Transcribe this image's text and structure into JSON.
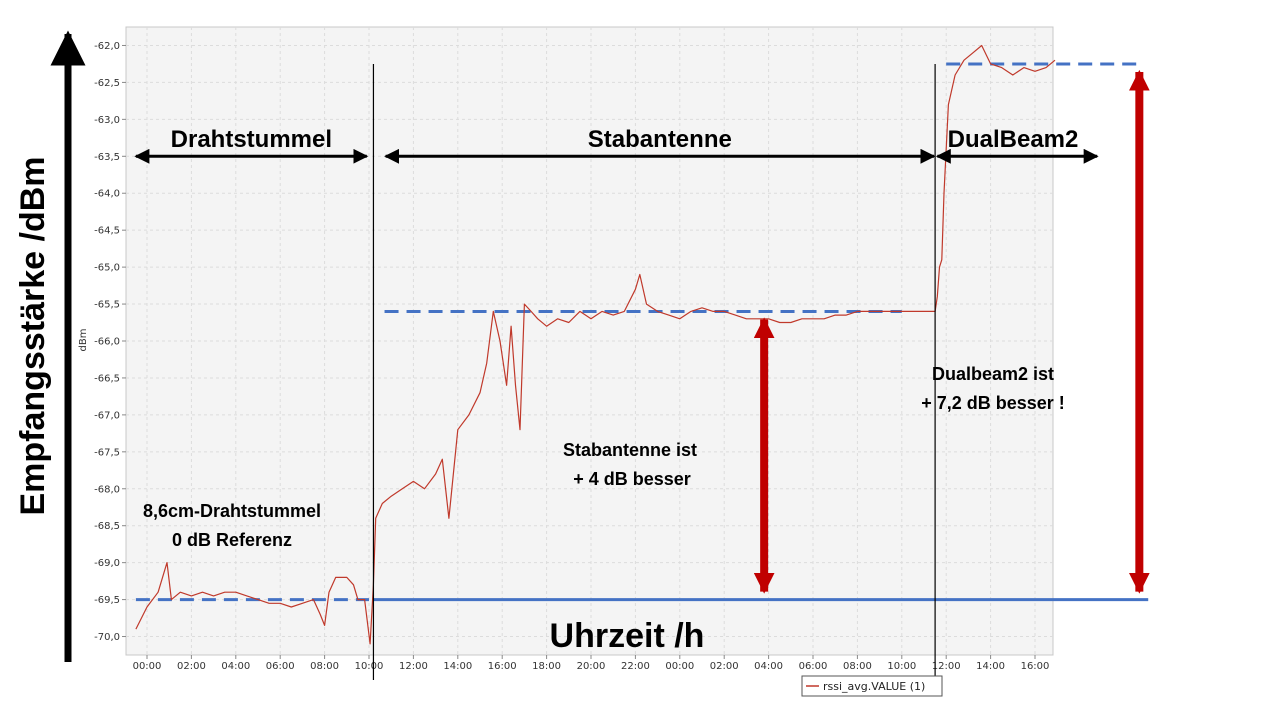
{
  "chart_data": {
    "type": "line",
    "ylabel": "Empfangsstärke /dBm",
    "xlabel": "Uhrzeit /h",
    "unit_label": "dBm",
    "ylim": [
      -70.25,
      -61.75
    ],
    "y_ticks": [
      "-62,0",
      "-62,5",
      "-63,0",
      "-63,5",
      "-64,0",
      "-64,5",
      "-65,0",
      "-65,5",
      "-66,0",
      "-66,5",
      "-67,0",
      "-67,5",
      "-68,0",
      "-68,5",
      "-69,0",
      "-69,5",
      "-70,0"
    ],
    "y_tick_values": [
      -62.0,
      -62.5,
      -63.0,
      -63.5,
      -64.0,
      -64.5,
      -65.0,
      -65.5,
      -66.0,
      -66.5,
      -67.0,
      -67.5,
      -68.0,
      -68.5,
      -69.0,
      -69.5,
      -70.0
    ],
    "x_range_hours": [
      -0.5,
      41.8
    ],
    "x_ticks": [
      "00:00",
      "02:00",
      "04:00",
      "06:00",
      "08:00",
      "10:00",
      "12:00",
      "14:00",
      "16:00",
      "18:00",
      "20:00",
      "22:00",
      "00:00",
      "02:00",
      "04:00",
      "06:00",
      "08:00",
      "10:00",
      "12:00",
      "14:00",
      "16:00"
    ],
    "x_tick_hours": [
      0,
      2,
      4,
      6,
      8,
      10,
      12,
      14,
      16,
      18,
      20,
      22,
      24,
      26,
      28,
      30,
      32,
      34,
      36,
      38,
      40
    ],
    "grid": true,
    "legend": "bottom-right",
    "series": [
      {
        "name": "rssi_avg.VALUE (1)",
        "color": "#c0392b",
        "points": [
          [
            -0.5,
            -69.9
          ],
          [
            0,
            -69.6
          ],
          [
            0.5,
            -69.4
          ],
          [
            0.9,
            -69.0
          ],
          [
            1.1,
            -69.5
          ],
          [
            1.5,
            -69.4
          ],
          [
            2,
            -69.45
          ],
          [
            2.5,
            -69.4
          ],
          [
            3,
            -69.45
          ],
          [
            3.5,
            -69.4
          ],
          [
            4,
            -69.4
          ],
          [
            4.5,
            -69.45
          ],
          [
            5,
            -69.5
          ],
          [
            5.5,
            -69.55
          ],
          [
            6,
            -69.55
          ],
          [
            6.5,
            -69.6
          ],
          [
            7,
            -69.55
          ],
          [
            7.5,
            -69.5
          ],
          [
            7.8,
            -69.7
          ],
          [
            8,
            -69.85
          ],
          [
            8.2,
            -69.4
          ],
          [
            8.5,
            -69.2
          ],
          [
            9,
            -69.2
          ],
          [
            9.3,
            -69.3
          ],
          [
            9.5,
            -69.5
          ],
          [
            9.8,
            -69.5
          ],
          [
            10.05,
            -70.1
          ],
          [
            10.2,
            -69.3
          ],
          [
            10.3,
            -68.4
          ],
          [
            10.6,
            -68.2
          ],
          [
            11,
            -68.1
          ],
          [
            11.5,
            -68.0
          ],
          [
            12,
            -67.9
          ],
          [
            12.5,
            -68.0
          ],
          [
            13,
            -67.8
          ],
          [
            13.3,
            -67.6
          ],
          [
            13.6,
            -68.4
          ],
          [
            14,
            -67.2
          ],
          [
            14.5,
            -67.0
          ],
          [
            15,
            -66.7
          ],
          [
            15.3,
            -66.3
          ],
          [
            15.6,
            -65.6
          ],
          [
            15.9,
            -66.0
          ],
          [
            16.2,
            -66.6
          ],
          [
            16.4,
            -65.8
          ],
          [
            16.6,
            -66.6
          ],
          [
            16.8,
            -67.2
          ],
          [
            17,
            -65.5
          ],
          [
            17.3,
            -65.6
          ],
          [
            17.6,
            -65.7
          ],
          [
            18,
            -65.8
          ],
          [
            18.5,
            -65.7
          ],
          [
            19,
            -65.75
          ],
          [
            19.5,
            -65.6
          ],
          [
            20,
            -65.7
          ],
          [
            20.5,
            -65.6
          ],
          [
            21,
            -65.65
          ],
          [
            21.5,
            -65.6
          ],
          [
            22,
            -65.3
          ],
          [
            22.2,
            -65.1
          ],
          [
            22.5,
            -65.5
          ],
          [
            23,
            -65.6
          ],
          [
            23.5,
            -65.65
          ],
          [
            24,
            -65.7
          ],
          [
            24.5,
            -65.6
          ],
          [
            25,
            -65.55
          ],
          [
            25.5,
            -65.6
          ],
          [
            26,
            -65.6
          ],
          [
            26.5,
            -65.65
          ],
          [
            27,
            -65.7
          ],
          [
            27.5,
            -65.7
          ],
          [
            28,
            -65.7
          ],
          [
            28.5,
            -65.75
          ],
          [
            29,
            -65.75
          ],
          [
            29.5,
            -65.7
          ],
          [
            30,
            -65.7
          ],
          [
            30.5,
            -65.7
          ],
          [
            31,
            -65.65
          ],
          [
            31.5,
            -65.65
          ],
          [
            32,
            -65.6
          ],
          [
            33,
            -65.6
          ],
          [
            34,
            -65.6
          ],
          [
            35,
            -65.6
          ],
          [
            35.5,
            -65.6
          ],
          [
            35.6,
            -65.4
          ],
          [
            35.7,
            -65.0
          ],
          [
            35.8,
            -64.9
          ],
          [
            35.9,
            -64.0
          ],
          [
            36.1,
            -62.8
          ],
          [
            36.4,
            -62.4
          ],
          [
            36.8,
            -62.2
          ],
          [
            37.2,
            -62.1
          ],
          [
            37.6,
            -62.0
          ],
          [
            38,
            -62.25
          ],
          [
            38.5,
            -62.3
          ],
          [
            39,
            -62.4
          ],
          [
            39.5,
            -62.3
          ],
          [
            40,
            -62.35
          ],
          [
            40.5,
            -62.3
          ],
          [
            40.9,
            -62.2
          ]
        ]
      }
    ],
    "reference_lines": [
      {
        "name": "ref-line-0db",
        "type": "solid",
        "value": -69.5,
        "from_hour": 10.2,
        "to_hour": 45.1,
        "color": "#4472c4"
      },
      {
        "name": "ref-line-drahtstummel",
        "type": "dashed",
        "value": -69.5,
        "from_hour": -0.5,
        "to_hour": 10.0,
        "color": "#4472c4"
      },
      {
        "name": "ref-line-stabantenne",
        "type": "dashed",
        "value": -65.6,
        "from_hour": 10.7,
        "to_hour": 34.0,
        "color": "#4472c4"
      },
      {
        "name": "ref-line-dualbeam2",
        "type": "dashed",
        "value": -62.25,
        "from_hour": 36.0,
        "to_hour": 44.6,
        "color": "#4472c4"
      }
    ],
    "separators_hours": [
      10.2,
      35.5
    ],
    "regions": [
      {
        "label": "Drahtstummel",
        "from_hour": -0.5,
        "to_hour": 9.9
      },
      {
        "label": "Stabantenne",
        "from_hour": 10.75,
        "to_hour": 35.45
      },
      {
        "label": "DualBeam2",
        "from_hour": 35.6,
        "to_hour": 42.8
      }
    ],
    "gain_arrows": [
      {
        "name": "stabantenne",
        "at_hour": 27.8,
        "from": -69.5,
        "to": -65.6
      },
      {
        "name": "dualbeam2",
        "at_hour": 44.7,
        "from": -69.5,
        "to": -62.25
      }
    ],
    "annotations": {
      "drahtstummel": [
        "8,6cm-Drahtstummel",
        "0 dB Referenz"
      ],
      "stabantenne": [
        "Stabantenne ist",
        "+ 4 dB besser"
      ],
      "dualbeam2": [
        "Dualbeam2 ist",
        "+ 7,2 dB besser !"
      ]
    }
  },
  "colors": {
    "series": "#c0392b",
    "reference": "#4472c4",
    "gain_arrow": "#c00000",
    "plot_background": "#f4f4f4",
    "grid": "#dcdcdc"
  }
}
